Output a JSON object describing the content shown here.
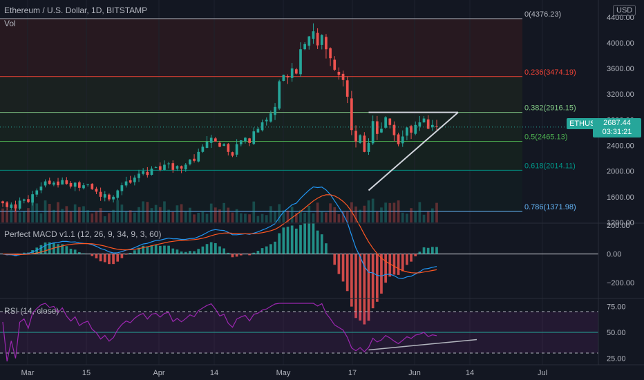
{
  "header": {
    "title": "Ethereum / U.S. Dollar, 1D, BITSTAMP",
    "vol_label": "Vol",
    "currency": "USD"
  },
  "indicators": {
    "macd_label": "Perfect MACD v1.1 (12, 26, 9, 34, 9, 3, 60)",
    "rsi_label": "RSI (14, close)"
  },
  "last_price": {
    "symbol": "ETHUSD",
    "price": "2687.44",
    "countdown": "03:31:21"
  },
  "colors": {
    "up": "#26a69a",
    "down": "#ef5350",
    "background": "#131722",
    "rsi": "#9c27b0",
    "macd_line": "#2196f3",
    "signal_line": "#ff5722"
  },
  "chart_data": [
    {
      "type": "candlestick",
      "panel": "price",
      "x_tick_labels": [
        "Mar",
        "15",
        "Apr",
        "14",
        "May",
        "17",
        "Jun",
        "14",
        "Jul"
      ],
      "y_tick_labels": [
        "1200.00",
        "1600.00",
        "2000.00",
        "2400.00",
        "2800.00",
        "3200.00",
        "3600.00",
        "4000.00",
        "4400.00"
      ],
      "ylim": [
        1200,
        4430
      ],
      "fib_levels": [
        {
          "label": "0(4376.23)",
          "value": 4376.23,
          "color": "#b2b5be"
        },
        {
          "label": "0.236(3474.19)",
          "value": 3474.19,
          "color": "#f44336"
        },
        {
          "label": "0.382(2916.15)",
          "value": 2916.15,
          "color": "#81c784"
        },
        {
          "label": "0.5(2465.13)",
          "value": 2465.13,
          "color": "#4caf50"
        },
        {
          "label": "0.618(2014.11)",
          "value": 2014.11,
          "color": "#009688"
        },
        {
          "label": "0.786(1371.98)",
          "value": 1371.98,
          "color": "#64b5f6"
        }
      ],
      "close_series": [
        1500,
        1440,
        1480,
        1420,
        1540,
        1560,
        1520,
        1640,
        1700,
        1760,
        1840,
        1800,
        1820,
        1780,
        1860,
        1800,
        1760,
        1820,
        1740,
        1780,
        1800,
        1720,
        1680,
        1600,
        1640,
        1560,
        1600,
        1700,
        1780,
        1840,
        1820,
        1900,
        1960,
        2000,
        1940,
        2040,
        2060,
        2020,
        2100,
        2120,
        2020,
        2080,
        2040,
        2100,
        2180,
        2160,
        2300,
        2380,
        2460,
        2520,
        2460,
        2380,
        2420,
        2300,
        2240,
        2420,
        2480,
        2520,
        2440,
        2620,
        2660,
        2760,
        2800,
        2900,
        3000,
        3400,
        3500,
        3460,
        3600,
        3520,
        3900,
        3980,
        4100,
        4180,
        3960,
        4120,
        3900,
        3760,
        3580,
        3500,
        3420,
        3160,
        2640,
        2460,
        2560,
        2300,
        2440,
        2780,
        2580,
        2660,
        2840,
        2720,
        2560,
        2420,
        2540,
        2680,
        2600,
        2720,
        2760,
        2820,
        2660,
        2720,
        2690
      ],
      "annotations": {
        "triangle_resistance": 2916,
        "triangle_support_from": [
          86,
          1700
        ],
        "triangle_support_to": [
          105,
          2680
        ]
      }
    },
    {
      "type": "bar",
      "panel": "volume",
      "series": "daily volume (relative)"
    },
    {
      "type": "histogram+line",
      "panel": "macd",
      "y_tick_labels": [
        "200.00",
        "0.00",
        "−200.00"
      ],
      "ylim": [
        -300,
        200
      ]
    },
    {
      "type": "line",
      "panel": "rsi",
      "y_tick_labels": [
        "75.00",
        "50.00",
        "25.00"
      ],
      "ylim": [
        20,
        80
      ],
      "bands": [
        70,
        50,
        30
      ]
    }
  ]
}
